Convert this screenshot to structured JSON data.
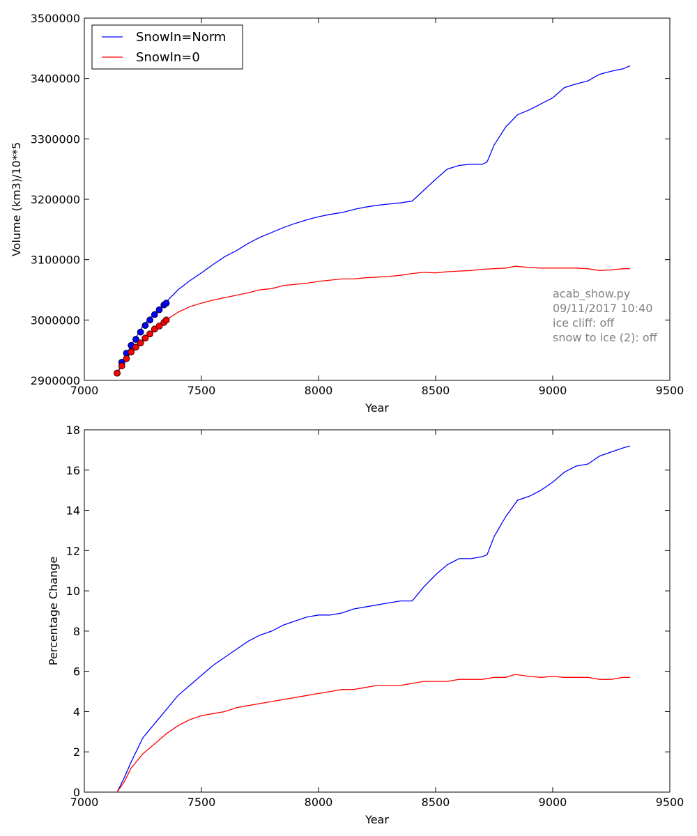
{
  "colors": {
    "blue": "#0000ff",
    "red": "#ff0000",
    "axes": "#000000",
    "annotation": "#808080"
  },
  "chart_data": [
    {
      "type": "line",
      "xlabel": "Year",
      "ylabel": "Volume (km3)/10**5",
      "xlim": [
        7000,
        9500
      ],
      "ylim": [
        2900000,
        3500000
      ],
      "xticks": [
        "7000",
        "7500",
        "8000",
        "8500",
        "9000",
        "9500"
      ],
      "yticks": [
        "2900000",
        "3000000",
        "3100000",
        "3200000",
        "3300000",
        "3400000",
        "3500000"
      ],
      "grid": false,
      "legend": "top-left",
      "annotation": [
        "acab_show.py",
        "09/11/2017 10:40",
        "ice cliff: off",
        "snow to ice (2): off"
      ],
      "series": [
        {
          "name": "SnowIn=Norm",
          "color": "#0000ff",
          "x": [
            7140,
            7200,
            7250,
            7300,
            7350,
            7400,
            7450,
            7500,
            7550,
            7600,
            7650,
            7700,
            7750,
            7800,
            7850,
            7900,
            7950,
            8000,
            8050,
            8100,
            8150,
            8200,
            8250,
            8300,
            8350,
            8400,
            8450,
            8500,
            8550,
            8600,
            8650,
            8700,
            8720,
            8750,
            8800,
            8850,
            8900,
            8950,
            9000,
            9050,
            9100,
            9150,
            9200,
            9250,
            9300,
            9330
          ],
          "y": [
            2912000,
            2958000,
            2990000,
            3012000,
            3030000,
            3050000,
            3065000,
            3078000,
            3092000,
            3105000,
            3115000,
            3127000,
            3137000,
            3145000,
            3153000,
            3160000,
            3166000,
            3171000,
            3175000,
            3178000,
            3183000,
            3187000,
            3190000,
            3192000,
            3194000,
            3197000,
            3215000,
            3233000,
            3250000,
            3256000,
            3258000,
            3258000,
            3262000,
            3290000,
            3320000,
            3340000,
            3348000,
            3358000,
            3368000,
            3385000,
            3391000,
            3396000,
            3407000,
            3412000,
            3416000,
            3421000
          ]
        },
        {
          "name": "SnowIn=0",
          "color": "#ff0000",
          "x": [
            7140,
            7200,
            7250,
            7300,
            7350,
            7400,
            7450,
            7500,
            7550,
            7600,
            7650,
            7700,
            7750,
            7800,
            7850,
            7900,
            7950,
            8000,
            8050,
            8100,
            8150,
            8200,
            8250,
            8300,
            8350,
            8400,
            8450,
            8500,
            8550,
            8600,
            8650,
            8700,
            8750,
            8800,
            8840,
            8900,
            8950,
            9000,
            9050,
            9100,
            9150,
            9200,
            9250,
            9300,
            9330
          ],
          "y": [
            2912000,
            2947000,
            2968000,
            2985000,
            3000000,
            3013000,
            3022000,
            3028000,
            3033000,
            3037000,
            3041000,
            3045000,
            3050000,
            3052000,
            3057000,
            3059000,
            3061000,
            3064000,
            3066000,
            3068000,
            3068000,
            3070000,
            3071000,
            3072000,
            3074000,
            3077000,
            3079000,
            3078000,
            3080000,
            3081000,
            3082000,
            3084000,
            3085000,
            3086000,
            3089000,
            3087000,
            3086000,
            3086000,
            3086000,
            3086000,
            3085000,
            3082000,
            3083000,
            3085000,
            3085000
          ]
        },
        {
          "name": "",
          "color": "#0000ff",
          "marker": "circle",
          "x": [
            7140,
            7160,
            7180,
            7200,
            7220,
            7240,
            7260,
            7280,
            7300,
            7320,
            7340,
            7350
          ],
          "y": [
            2912000,
            2930000,
            2945000,
            2958000,
            2968000,
            2980000,
            2991000,
            3000000,
            3009000,
            3017000,
            3025000,
            3028000
          ]
        },
        {
          "name": "",
          "color": "#ff0000",
          "marker": "circle",
          "x": [
            7140,
            7160,
            7180,
            7200,
            7220,
            7240,
            7260,
            7280,
            7300,
            7320,
            7340,
            7350
          ],
          "y": [
            2912000,
            2924000,
            2936000,
            2947000,
            2955000,
            2962000,
            2970000,
            2977000,
            2985000,
            2990000,
            2996000,
            3000000
          ]
        }
      ]
    },
    {
      "type": "line",
      "xlabel": "Year",
      "ylabel": "Percentage Change",
      "xlim": [
        7000,
        9500
      ],
      "ylim": [
        0,
        18
      ],
      "xticks": [
        "7000",
        "7500",
        "8000",
        "8500",
        "9000",
        "9500"
      ],
      "yticks": [
        "0",
        "2",
        "4",
        "6",
        "8",
        "10",
        "12",
        "14",
        "16",
        "18"
      ],
      "grid": false,
      "series": [
        {
          "name": "SnowIn=Norm",
          "color": "#0000ff",
          "x": [
            7140,
            7170,
            7200,
            7250,
            7300,
            7350,
            7400,
            7450,
            7500,
            7550,
            7600,
            7650,
            7700,
            7750,
            7800,
            7850,
            7900,
            7950,
            8000,
            8050,
            8100,
            8150,
            8200,
            8250,
            8300,
            8350,
            8400,
            8450,
            8500,
            8550,
            8600,
            8650,
            8700,
            8720,
            8750,
            8800,
            8850,
            8900,
            8950,
            9000,
            9050,
            9100,
            9150,
            9200,
            9250,
            9300,
            9330
          ],
          "y": [
            0,
            0.7,
            1.5,
            2.7,
            3.4,
            4.1,
            4.8,
            5.3,
            5.8,
            6.3,
            6.7,
            7.1,
            7.5,
            7.8,
            8.0,
            8.3,
            8.5,
            8.7,
            8.8,
            8.8,
            8.9,
            9.1,
            9.2,
            9.3,
            9.4,
            9.5,
            9.5,
            10.2,
            10.8,
            11.3,
            11.6,
            11.6,
            11.7,
            11.8,
            12.7,
            13.7,
            14.5,
            14.7,
            15.0,
            15.4,
            15.9,
            16.2,
            16.3,
            16.7,
            16.9,
            17.1,
            17.2
          ]
        },
        {
          "name": "SnowIn=0",
          "color": "#ff0000",
          "x": [
            7140,
            7170,
            7200,
            7250,
            7300,
            7350,
            7400,
            7450,
            7500,
            7550,
            7600,
            7650,
            7700,
            7750,
            7800,
            7850,
            7900,
            7950,
            8000,
            8050,
            8100,
            8150,
            8200,
            8250,
            8300,
            8350,
            8400,
            8450,
            8500,
            8550,
            8600,
            8650,
            8700,
            8750,
            8800,
            8840,
            8900,
            8950,
            9000,
            9050,
            9100,
            9150,
            9200,
            9250,
            9300,
            9330
          ],
          "y": [
            0,
            0.5,
            1.2,
            1.9,
            2.4,
            2.9,
            3.3,
            3.6,
            3.8,
            3.9,
            4.0,
            4.2,
            4.3,
            4.4,
            4.5,
            4.6,
            4.7,
            4.8,
            4.9,
            5.0,
            5.1,
            5.1,
            5.2,
            5.3,
            5.3,
            5.3,
            5.4,
            5.5,
            5.5,
            5.5,
            5.6,
            5.6,
            5.6,
            5.7,
            5.7,
            5.85,
            5.75,
            5.7,
            5.75,
            5.7,
            5.7,
            5.7,
            5.6,
            5.6,
            5.7,
            5.7
          ]
        }
      ]
    }
  ]
}
